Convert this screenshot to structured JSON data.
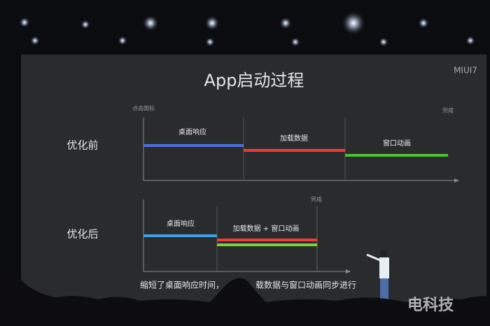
{
  "header": {
    "title": "App启动过程",
    "logo": "MIUI7"
  },
  "before": {
    "label": "优化前",
    "start_label": "点击图标",
    "end_label": "完成",
    "steps": [
      "桌面响应",
      "加载数据",
      "窗口动画"
    ]
  },
  "after": {
    "label": "优化后",
    "end_label": "完成",
    "steps": [
      "桌面响应",
      "加载数据 + 窗口动画"
    ]
  },
  "caption": [
    "缩短了桌面响应时间，",
    "载数据与窗口动画同步进行"
  ],
  "watermark": "电科技"
}
